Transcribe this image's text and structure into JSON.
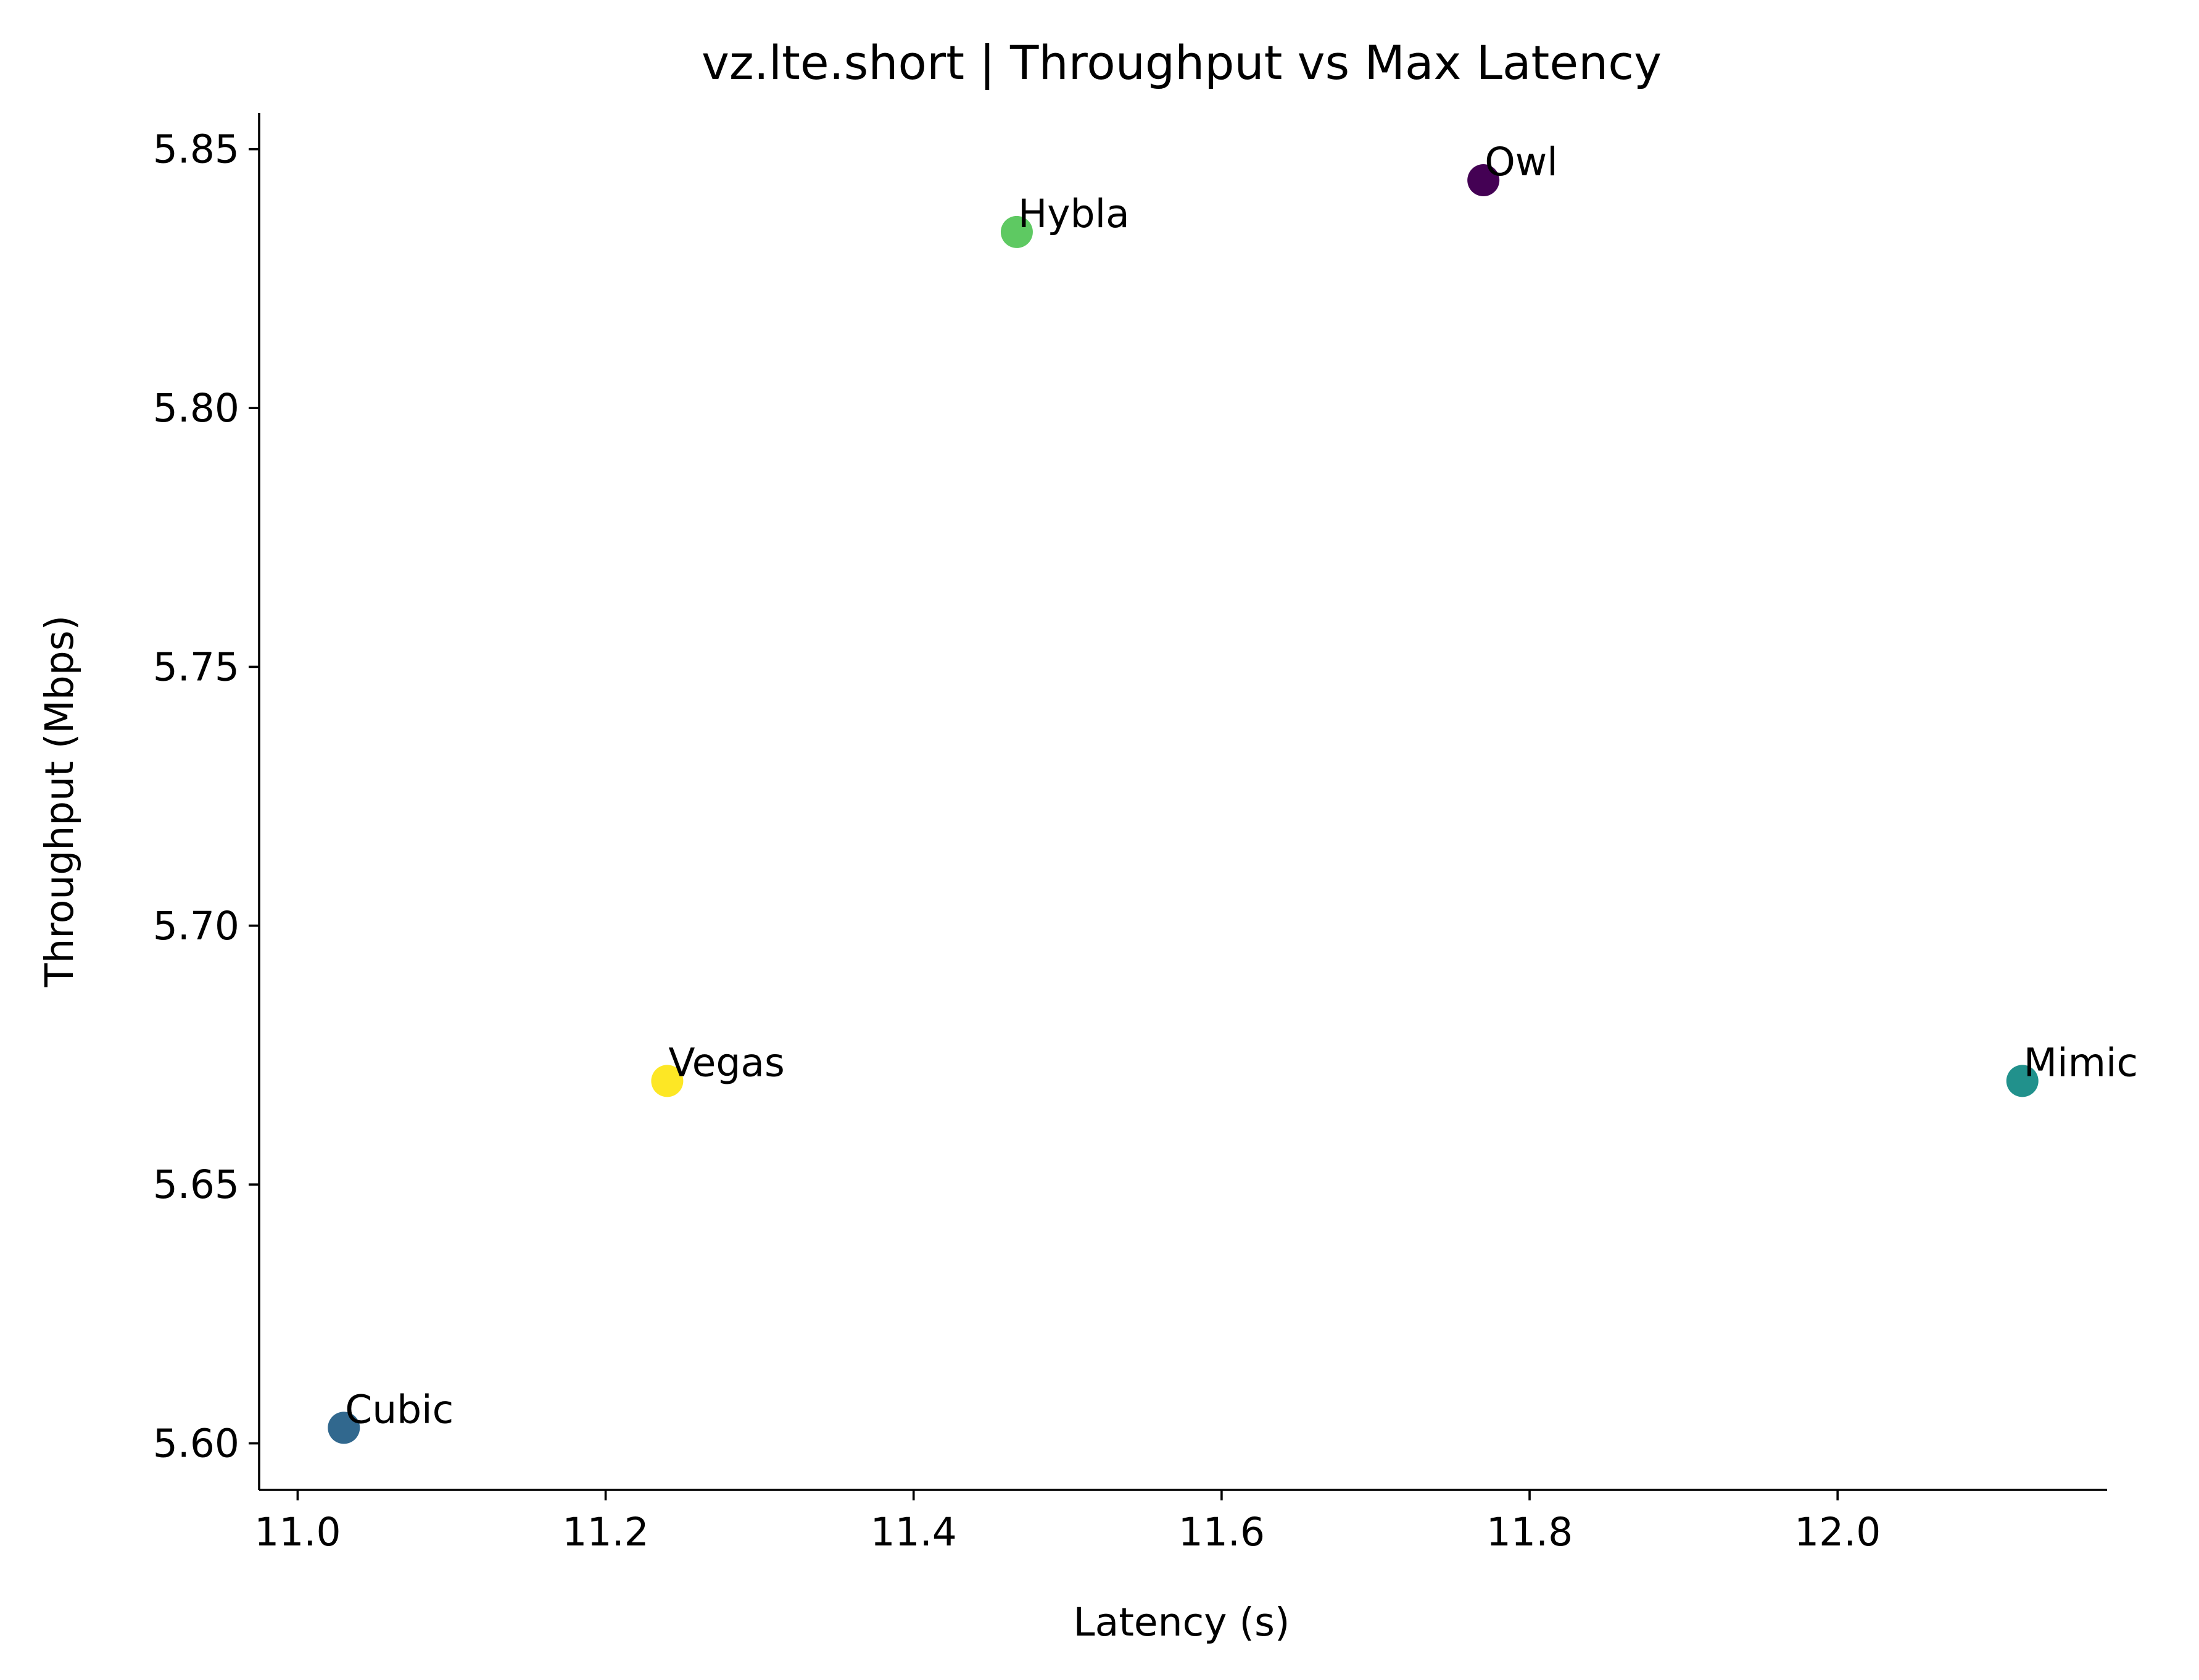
{
  "chart_data": {
    "type": "scatter",
    "title": "vz.lte.short | Throughput vs Max Latency",
    "xlabel": "Latency (s)",
    "ylabel": "Throughput (Mbps)",
    "xlim": [
      10.975,
      12.175
    ],
    "ylim": [
      5.591,
      5.857
    ],
    "xticks": [
      11.0,
      11.2,
      11.4,
      11.6,
      11.8,
      12.0
    ],
    "xtick_labels": [
      "11.0",
      "11.2",
      "11.4",
      "11.6",
      "11.8",
      "12.0"
    ],
    "yticks": [
      5.6,
      5.65,
      5.7,
      5.75,
      5.8,
      5.85
    ],
    "ytick_labels": [
      "5.60",
      "5.65",
      "5.70",
      "5.75",
      "5.80",
      "5.85"
    ],
    "grid": false,
    "points": [
      {
        "label": "Owl",
        "x": 11.77,
        "y": 5.844,
        "color": "#440154"
      },
      {
        "label": "Hybla",
        "x": 11.467,
        "y": 5.834,
        "color": "#5ec962"
      },
      {
        "label": "Vegas",
        "x": 11.24,
        "y": 5.67,
        "color": "#fde725"
      },
      {
        "label": "Mimic",
        "x": 12.12,
        "y": 5.67,
        "color": "#21918c"
      },
      {
        "label": "Cubic",
        "x": 11.03,
        "y": 5.603,
        "color": "#31688e"
      }
    ]
  }
}
